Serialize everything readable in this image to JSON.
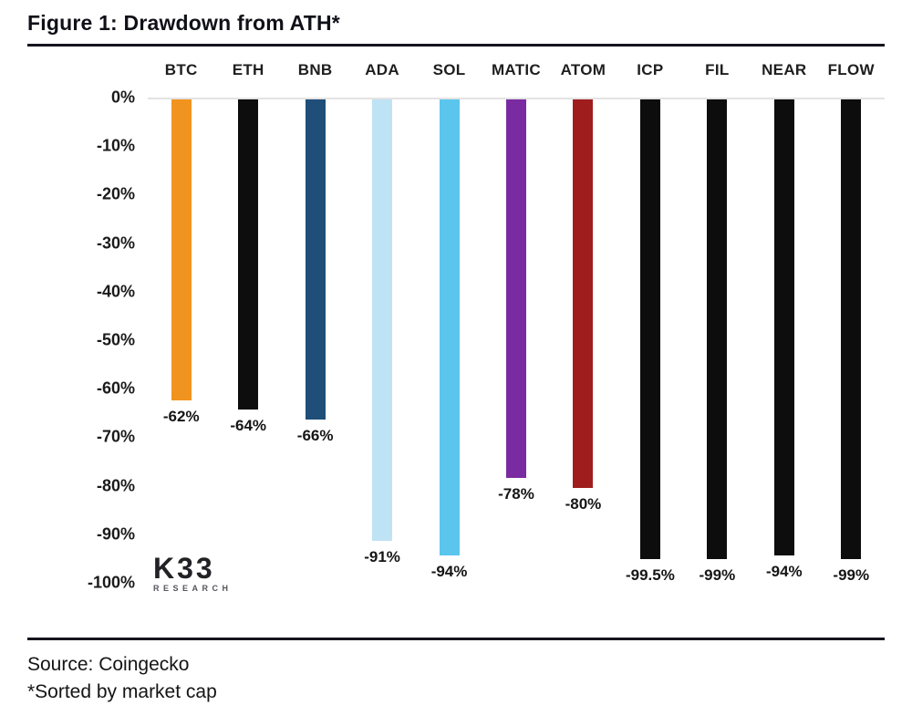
{
  "title": "Figure 1: Drawdown from ATH*",
  "footer": {
    "source": "Source: Coingecko",
    "note": "*Sorted by market cap"
  },
  "logo": {
    "main": "K33",
    "sub": "RESEARCH"
  },
  "chart_data": {
    "type": "bar",
    "title": "Figure 1: Drawdown from ATH*",
    "categories": [
      "BTC",
      "ETH",
      "BNB",
      "ADA",
      "SOL",
      "MATIC",
      "ATOM",
      "ICP",
      "FIL",
      "NEAR",
      "FLOW"
    ],
    "values": [
      -62,
      -64,
      -66,
      -91,
      -94,
      -78,
      -80,
      -99.5,
      -99,
      -94,
      -99
    ],
    "value_labels": [
      "-62%",
      "-64%",
      "-66%",
      "-91%",
      "-94%",
      "-78%",
      "-80%",
      "-99.5%",
      "-99%",
      "-94%",
      "-99%"
    ],
    "bar_colors": [
      "#F0941F",
      "#0D0D0D",
      "#1F4E79",
      "#BEE3F4",
      "#5BC5EE",
      "#7B2BA1",
      "#A01D1D",
      "#0D0D0D",
      "#0D0D0D",
      "#0D0D0D",
      "#0D0D0D"
    ],
    "xlabel": "",
    "ylabel": "",
    "ylim": [
      -100,
      0
    ],
    "ytick_labels": [
      "0%",
      "-10%",
      "-20%",
      "-30%",
      "-40%",
      "-50%",
      "-60%",
      "-70%",
      "-80%",
      "-90%",
      "-100%"
    ],
    "grid": "baseline-only",
    "legend": "none",
    "baseline_color": "#e3e3e3"
  }
}
